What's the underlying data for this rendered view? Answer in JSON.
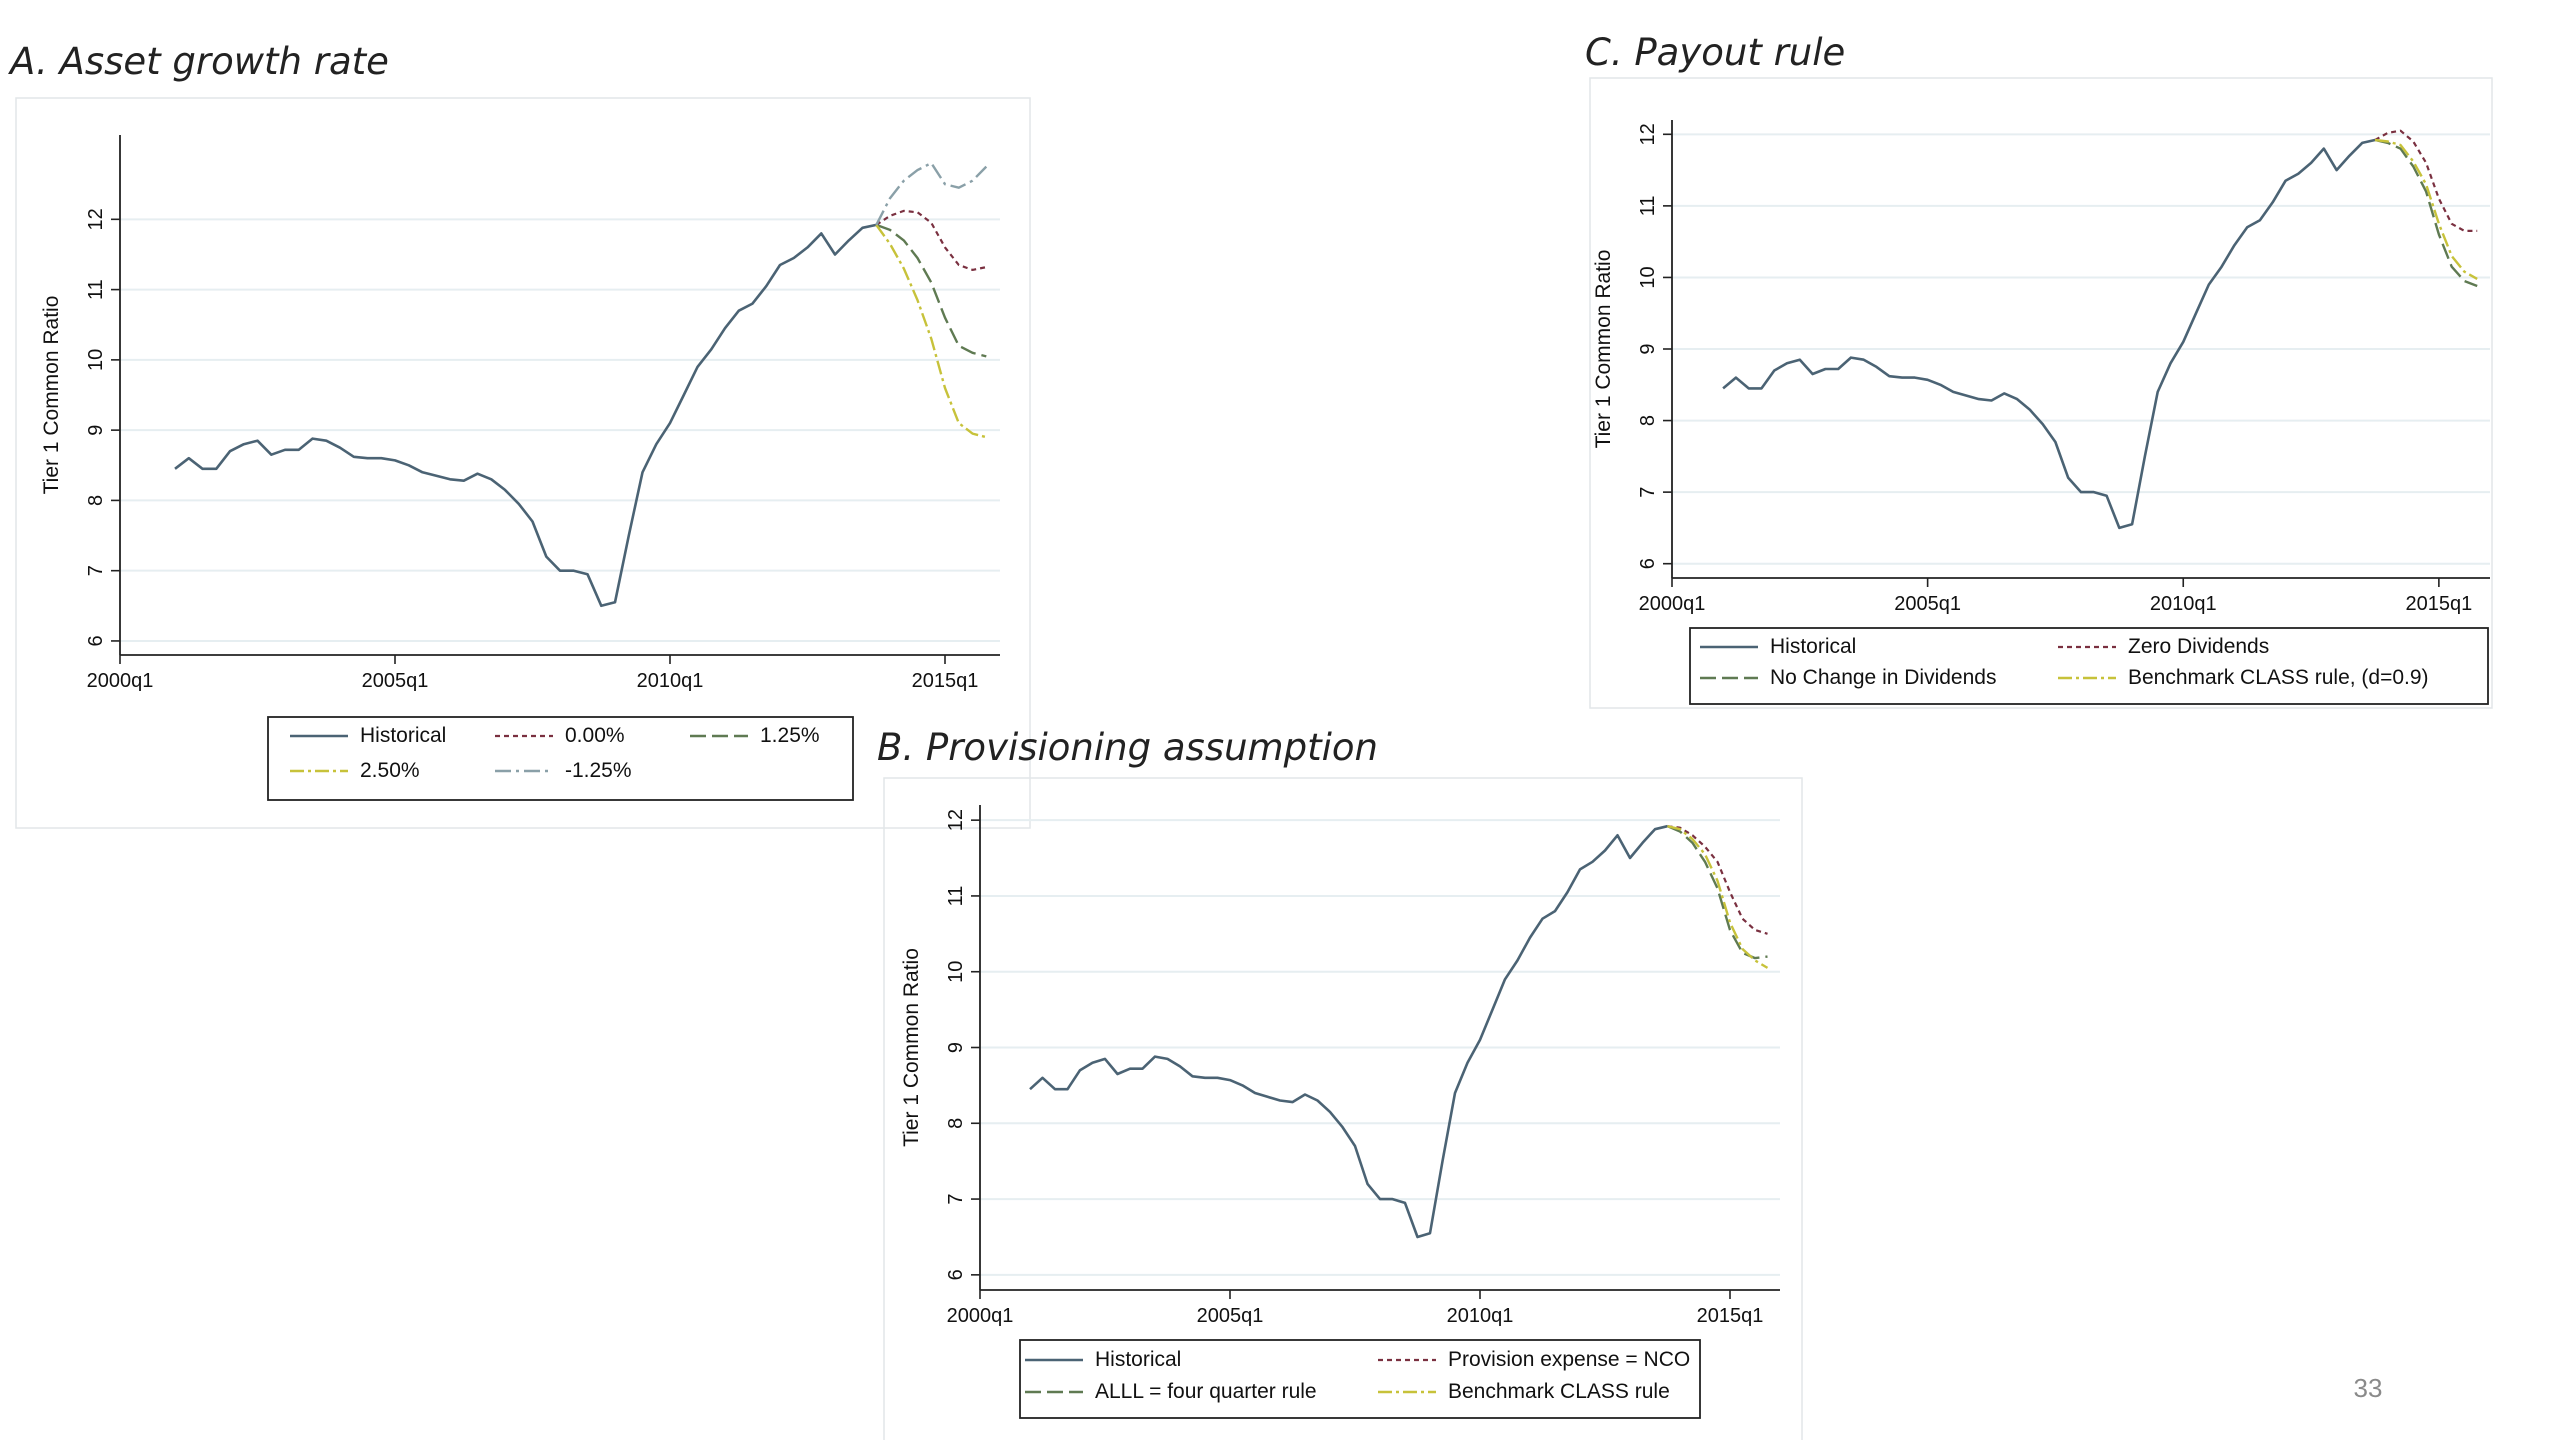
{
  "page_number": "33",
  "colors": {
    "historical": "#4b6374",
    "zero": "#7a3040",
    "one_quarter": "#5f7a52",
    "two_half": "#c7c23a",
    "minus_one_quarter": "#8aa0a8",
    "grid": "#e6eef1",
    "frame": "#e2e6e8"
  },
  "chart_data": [
    {
      "id": "A",
      "type": "line",
      "title": "A. Asset growth rate",
      "ylabel": "Tier 1 Common Ratio",
      "xlabel": "",
      "xlim": [
        2000.0,
        2016.0
      ],
      "ylim": [
        5.8,
        13.2
      ],
      "x_ticks": [
        {
          "v": 2000.0,
          "label": "2000q1"
        },
        {
          "v": 2005.0,
          "label": "2005q1"
        },
        {
          "v": 2010.0,
          "label": "2010q1"
        },
        {
          "v": 2015.0,
          "label": "2015q1"
        }
      ],
      "y_ticks": [
        6,
        7,
        8,
        9,
        10,
        11,
        12
      ],
      "grid": true,
      "legend_position": "bottom",
      "historical": {
        "name": "Historical",
        "x": [
          2001.0,
          2001.25,
          2001.5,
          2001.75,
          2002.0,
          2002.25,
          2002.5,
          2002.75,
          2003.0,
          2003.25,
          2003.5,
          2003.75,
          2004.0,
          2004.25,
          2004.5,
          2004.75,
          2005.0,
          2005.25,
          2005.5,
          2005.75,
          2006.0,
          2006.25,
          2006.5,
          2006.75,
          2007.0,
          2007.25,
          2007.5,
          2007.75,
          2008.0,
          2008.25,
          2008.5,
          2008.75,
          2009.0,
          2009.25,
          2009.5,
          2009.75,
          2010.0,
          2010.25,
          2010.5,
          2010.75,
          2011.0,
          2011.25,
          2011.5,
          2011.75,
          2012.0,
          2012.25,
          2012.5,
          2012.75,
          2013.0,
          2013.25,
          2013.5,
          2013.75
        ],
        "y": [
          8.45,
          8.6,
          8.45,
          8.45,
          8.7,
          8.8,
          8.85,
          8.65,
          8.72,
          8.72,
          8.88,
          8.85,
          8.75,
          8.62,
          8.6,
          8.6,
          8.57,
          8.5,
          8.4,
          8.35,
          8.3,
          8.28,
          8.38,
          8.3,
          8.15,
          7.95,
          7.7,
          7.2,
          7.0,
          7.0,
          6.95,
          6.5,
          6.55,
          7.5,
          8.4,
          8.8,
          9.1,
          9.5,
          9.9,
          10.15,
          10.45,
          10.7,
          10.8,
          11.05,
          11.35,
          11.45,
          11.6,
          11.8,
          11.5,
          11.7,
          11.88,
          11.92
        ]
      },
      "series": [
        {
          "name": "0.00%",
          "style": "zero",
          "x": [
            2013.75,
            2014.0,
            2014.25,
            2014.5,
            2014.75,
            2015.0,
            2015.25,
            2015.5,
            2015.75
          ],
          "y": [
            11.92,
            12.05,
            12.12,
            12.1,
            11.95,
            11.6,
            11.35,
            11.28,
            11.32
          ]
        },
        {
          "name": "1.25%",
          "style": "one_quarter",
          "x": [
            2013.75,
            2014.0,
            2014.25,
            2014.5,
            2014.75,
            2015.0,
            2015.25,
            2015.5,
            2015.75
          ],
          "y": [
            11.92,
            11.85,
            11.7,
            11.45,
            11.1,
            10.6,
            10.2,
            10.1,
            10.05
          ]
        },
        {
          "name": "2.50%",
          "style": "two_half",
          "x": [
            2013.75,
            2014.0,
            2014.25,
            2014.5,
            2014.75,
            2015.0,
            2015.25,
            2015.5,
            2015.75
          ],
          "y": [
            11.92,
            11.65,
            11.3,
            10.85,
            10.3,
            9.6,
            9.1,
            8.95,
            8.9
          ]
        },
        {
          "name": "-1.25%",
          "style": "minus_one_quarter",
          "x": [
            2013.75,
            2014.0,
            2014.25,
            2014.5,
            2014.75,
            2015.0,
            2015.25,
            2015.5,
            2015.75
          ],
          "y": [
            11.92,
            12.3,
            12.55,
            12.7,
            12.8,
            12.5,
            12.45,
            12.55,
            12.75
          ]
        }
      ],
      "legend_order": [
        "Historical",
        "0.00%",
        "1.25%",
        "2.50%",
        "-1.25%"
      ]
    },
    {
      "id": "C",
      "type": "line",
      "title": "C. Payout rule",
      "ylabel": "Tier 1 Common Ratio",
      "xlabel": "",
      "xlim": [
        2000.0,
        2016.0
      ],
      "ylim": [
        5.8,
        12.2
      ],
      "x_ticks": [
        {
          "v": 2000.0,
          "label": "2000q1"
        },
        {
          "v": 2005.0,
          "label": "2005q1"
        },
        {
          "v": 2010.0,
          "label": "2010q1"
        },
        {
          "v": 2015.0,
          "label": "2015q1"
        }
      ],
      "y_ticks": [
        6,
        7,
        8,
        9,
        10,
        11,
        12
      ],
      "grid": true,
      "legend_position": "bottom",
      "historical": {
        "name": "Historical",
        "x": [
          2001.0,
          2001.25,
          2001.5,
          2001.75,
          2002.0,
          2002.25,
          2002.5,
          2002.75,
          2003.0,
          2003.25,
          2003.5,
          2003.75,
          2004.0,
          2004.25,
          2004.5,
          2004.75,
          2005.0,
          2005.25,
          2005.5,
          2005.75,
          2006.0,
          2006.25,
          2006.5,
          2006.75,
          2007.0,
          2007.25,
          2007.5,
          2007.75,
          2008.0,
          2008.25,
          2008.5,
          2008.75,
          2009.0,
          2009.25,
          2009.5,
          2009.75,
          2010.0,
          2010.25,
          2010.5,
          2010.75,
          2011.0,
          2011.25,
          2011.5,
          2011.75,
          2012.0,
          2012.25,
          2012.5,
          2012.75,
          2013.0,
          2013.25,
          2013.5,
          2013.75
        ],
        "y": [
          8.45,
          8.6,
          8.45,
          8.45,
          8.7,
          8.8,
          8.85,
          8.65,
          8.72,
          8.72,
          8.88,
          8.85,
          8.75,
          8.62,
          8.6,
          8.6,
          8.57,
          8.5,
          8.4,
          8.35,
          8.3,
          8.28,
          8.38,
          8.3,
          8.15,
          7.95,
          7.7,
          7.2,
          7.0,
          7.0,
          6.95,
          6.5,
          6.55,
          7.5,
          8.4,
          8.8,
          9.1,
          9.5,
          9.9,
          10.15,
          10.45,
          10.7,
          10.8,
          11.05,
          11.35,
          11.45,
          11.6,
          11.8,
          11.5,
          11.7,
          11.88,
          11.92
        ]
      },
      "series": [
        {
          "name": "Zero Dividends",
          "style": "zero",
          "x": [
            2013.75,
            2014.0,
            2014.25,
            2014.5,
            2014.75,
            2015.0,
            2015.25,
            2015.5,
            2015.75
          ],
          "y": [
            11.92,
            12.02,
            12.05,
            11.9,
            11.6,
            11.1,
            10.75,
            10.65,
            10.65
          ]
        },
        {
          "name": "No Change in Dividends",
          "style": "one_quarter",
          "x": [
            2013.75,
            2014.0,
            2014.25,
            2014.5,
            2014.75,
            2015.0,
            2015.25,
            2015.5,
            2015.75
          ],
          "y": [
            11.92,
            11.88,
            11.8,
            11.55,
            11.2,
            10.6,
            10.15,
            9.95,
            9.88
          ]
        },
        {
          "name": "Benchmark CLASS rule, (d=0.9)",
          "style": "two_half",
          "x": [
            2013.75,
            2014.0,
            2014.25,
            2014.5,
            2014.75,
            2015.0,
            2015.25,
            2015.5,
            2015.75
          ],
          "y": [
            11.92,
            11.9,
            11.85,
            11.62,
            11.3,
            10.75,
            10.3,
            10.08,
            9.98
          ]
        }
      ],
      "legend_order": [
        "Historical",
        "Zero Dividends",
        "No Change in Dividends",
        "Benchmark CLASS rule, (d=0.9)"
      ]
    },
    {
      "id": "B",
      "type": "line",
      "title": "B. Provisioning assumption",
      "ylabel": "Tier 1 Common Ratio",
      "xlabel": "",
      "xlim": [
        2000.0,
        2016.0
      ],
      "ylim": [
        5.8,
        12.2
      ],
      "x_ticks": [
        {
          "v": 2000.0,
          "label": "2000q1"
        },
        {
          "v": 2005.0,
          "label": "2005q1"
        },
        {
          "v": 2010.0,
          "label": "2010q1"
        },
        {
          "v": 2015.0,
          "label": "2015q1"
        }
      ],
      "y_ticks": [
        6,
        7,
        8,
        9,
        10,
        11,
        12
      ],
      "grid": true,
      "legend_position": "bottom",
      "historical": {
        "name": "Historical",
        "x": [
          2001.0,
          2001.25,
          2001.5,
          2001.75,
          2002.0,
          2002.25,
          2002.5,
          2002.75,
          2003.0,
          2003.25,
          2003.5,
          2003.75,
          2004.0,
          2004.25,
          2004.5,
          2004.75,
          2005.0,
          2005.25,
          2005.5,
          2005.75,
          2006.0,
          2006.25,
          2006.5,
          2006.75,
          2007.0,
          2007.25,
          2007.5,
          2007.75,
          2008.0,
          2008.25,
          2008.5,
          2008.75,
          2009.0,
          2009.25,
          2009.5,
          2009.75,
          2010.0,
          2010.25,
          2010.5,
          2010.75,
          2011.0,
          2011.25,
          2011.5,
          2011.75,
          2012.0,
          2012.25,
          2012.5,
          2012.75,
          2013.0,
          2013.25,
          2013.5,
          2013.75
        ],
        "y": [
          8.45,
          8.6,
          8.45,
          8.45,
          8.7,
          8.8,
          8.85,
          8.65,
          8.72,
          8.72,
          8.88,
          8.85,
          8.75,
          8.62,
          8.6,
          8.6,
          8.57,
          8.5,
          8.4,
          8.35,
          8.3,
          8.28,
          8.38,
          8.3,
          8.15,
          7.95,
          7.7,
          7.2,
          7.0,
          7.0,
          6.95,
          6.5,
          6.55,
          7.5,
          8.4,
          8.8,
          9.1,
          9.5,
          9.9,
          10.15,
          10.45,
          10.7,
          10.8,
          11.05,
          11.35,
          11.45,
          11.6,
          11.8,
          11.5,
          11.7,
          11.88,
          11.92
        ]
      },
      "series": [
        {
          "name": "Provision expense = NCO",
          "style": "zero",
          "x": [
            2013.75,
            2014.0,
            2014.25,
            2014.5,
            2014.75,
            2015.0,
            2015.25,
            2015.5,
            2015.75
          ],
          "y": [
            11.92,
            11.9,
            11.8,
            11.65,
            11.45,
            11.05,
            10.7,
            10.55,
            10.5
          ]
        },
        {
          "name": "ALLL = four quarter rule",
          "style": "one_quarter",
          "x": [
            2013.75,
            2014.0,
            2014.25,
            2014.5,
            2014.75,
            2015.0,
            2015.25,
            2015.5,
            2015.75
          ],
          "y": [
            11.92,
            11.85,
            11.7,
            11.45,
            11.1,
            10.55,
            10.25,
            10.18,
            10.2
          ]
        },
        {
          "name": "Benchmark CLASS rule",
          "style": "two_half",
          "x": [
            2013.75,
            2014.0,
            2014.25,
            2014.5,
            2014.75,
            2015.0,
            2015.25,
            2015.5,
            2015.75
          ],
          "y": [
            11.92,
            11.88,
            11.75,
            11.55,
            11.2,
            10.65,
            10.3,
            10.15,
            10.05
          ]
        }
      ],
      "legend_order": [
        "Historical",
        "Provision expense = NCO",
        "ALLL = four quarter rule",
        "Benchmark CLASS rule"
      ]
    }
  ]
}
